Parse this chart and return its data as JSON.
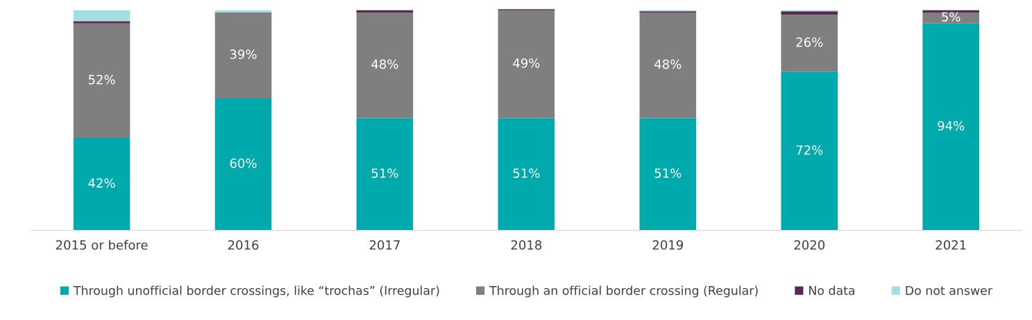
{
  "chart_data": {
    "type": "bar",
    "stacked": true,
    "categories": [
      "2015 or before",
      "2016",
      "2017",
      "2018",
      "2019",
      "2020",
      "2021"
    ],
    "ylim": [
      0,
      101
    ],
    "tick_labels": "x",
    "grid": false,
    "legend": "bottom",
    "series": [
      {
        "name": "Through unofficial border crossings, like “trochas” (Irregular)",
        "color": "#00a9ac",
        "values": [
          42,
          60,
          51,
          51,
          51,
          72,
          94
        ],
        "value_labels": [
          "42%",
          "60%",
          "51%",
          "51%",
          "51%",
          "72%",
          "94%"
        ]
      },
      {
        "name": "Through an official border crossing (Regular)",
        "color": "#7f7f7f",
        "values": [
          52,
          39,
          48,
          49,
          48,
          26,
          5
        ],
        "value_labels": [
          "52%",
          "39%",
          "48%",
          "49%",
          "48%",
          "26%",
          "5%"
        ]
      },
      {
        "name": "No data",
        "color": "#5c2751",
        "values": [
          1,
          0,
          1,
          0.5,
          0.5,
          1.5,
          1
        ]
      },
      {
        "name": "Do not answer",
        "color": "#a2e0e0",
        "values": [
          5,
          1,
          0,
          0,
          0.5,
          0.5,
          0
        ]
      }
    ]
  }
}
